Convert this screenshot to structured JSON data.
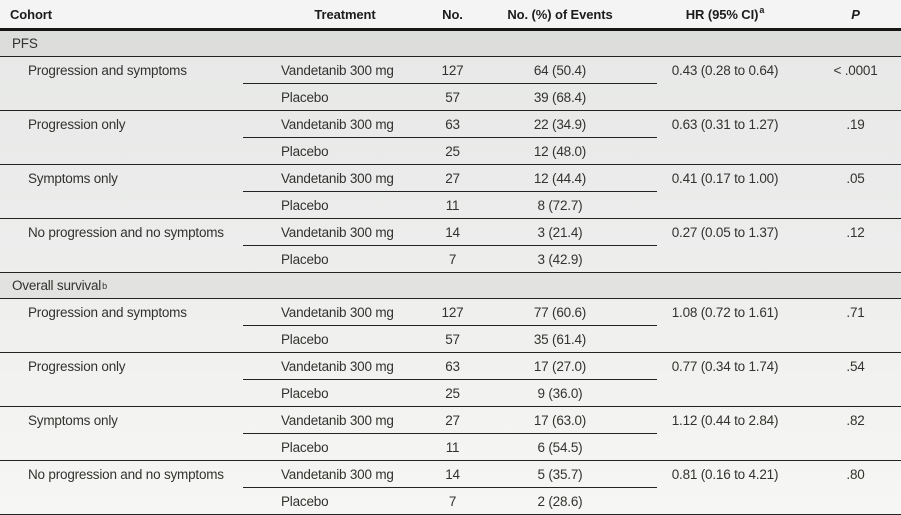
{
  "colors": {
    "rule": "#232323",
    "header_rule": "#161616",
    "section_band_bg": "#e2e3e1",
    "text": "#32322f"
  },
  "table": {
    "columns": [
      {
        "label": "Cohort"
      },
      {
        "label": "Treatment"
      },
      {
        "label": "No."
      },
      {
        "label": "No. (%) of Events"
      },
      {
        "label": "HR (95% CI)",
        "sup": "a"
      },
      {
        "label": "P"
      }
    ],
    "sections": [
      {
        "id": "pfs",
        "label": "PFS",
        "sup": "",
        "cohorts": [
          {
            "name": "Progression and symptoms",
            "hr": "0.43 (0.28 to 0.64)",
            "p": "< .0001",
            "rows": [
              {
                "treatment": "Vandetanib 300 mg",
                "no": "127",
                "events": "64 (50.4)"
              },
              {
                "treatment": "Placebo",
                "no": "57",
                "events": "39 (68.4)"
              }
            ]
          },
          {
            "name": "Progression only",
            "hr": "0.63 (0.31 to 1.27)",
            "p": ".19",
            "rows": [
              {
                "treatment": "Vandetanib 300 mg",
                "no": "63",
                "events": "22 (34.9)"
              },
              {
                "treatment": "Placebo",
                "no": "25",
                "events": "12 (48.0)"
              }
            ]
          },
          {
            "name": "Symptoms only",
            "hr": "0.41 (0.17 to 1.00)",
            "p": ".05",
            "rows": [
              {
                "treatment": "Vandetanib 300 mg",
                "no": "27",
                "events": "12 (44.4)"
              },
              {
                "treatment": "Placebo",
                "no": "11",
                "events": "8 (72.7)"
              }
            ]
          },
          {
            "name": "No progression and no symptoms",
            "hr": "0.27 (0.05 to 1.37)",
            "p": ".12",
            "rows": [
              {
                "treatment": "Vandetanib 300 mg",
                "no": "14",
                "events": "3 (21.4)"
              },
              {
                "treatment": "Placebo",
                "no": "7",
                "events": "3 (42.9)"
              }
            ]
          }
        ]
      },
      {
        "id": "overall-survival",
        "label": "Overall survival",
        "sup": "b",
        "cohorts": [
          {
            "name": "Progression and symptoms",
            "hr": "1.08 (0.72 to 1.61)",
            "p": ".71",
            "rows": [
              {
                "treatment": "Vandetanib 300 mg",
                "no": "127",
                "events": "77 (60.6)"
              },
              {
                "treatment": "Placebo",
                "no": "57",
                "events": "35 (61.4)"
              }
            ]
          },
          {
            "name": "Progression only",
            "hr": "0.77 (0.34 to 1.74)",
            "p": ".54",
            "rows": [
              {
                "treatment": "Vandetanib 300 mg",
                "no": "63",
                "events": "17 (27.0)"
              },
              {
                "treatment": "Placebo",
                "no": "25",
                "events": "9 (36.0)"
              }
            ]
          },
          {
            "name": "Symptoms only",
            "hr": "1.12 (0.44 to 2.84)",
            "p": ".82",
            "rows": [
              {
                "treatment": "Vandetanib 300 mg",
                "no": "27",
                "events": "17 (63.0)"
              },
              {
                "treatment": "Placebo",
                "no": "11",
                "events": "6 (54.5)"
              }
            ]
          },
          {
            "name": "No progression and no symptoms",
            "hr": "0.81 (0.16 to 4.21)",
            "p": ".80",
            "rows": [
              {
                "treatment": "Vandetanib 300 mg",
                "no": "14",
                "events": "5 (35.7)"
              },
              {
                "treatment": "Placebo",
                "no": "7",
                "events": "2 (28.6)"
              }
            ]
          }
        ]
      }
    ]
  }
}
